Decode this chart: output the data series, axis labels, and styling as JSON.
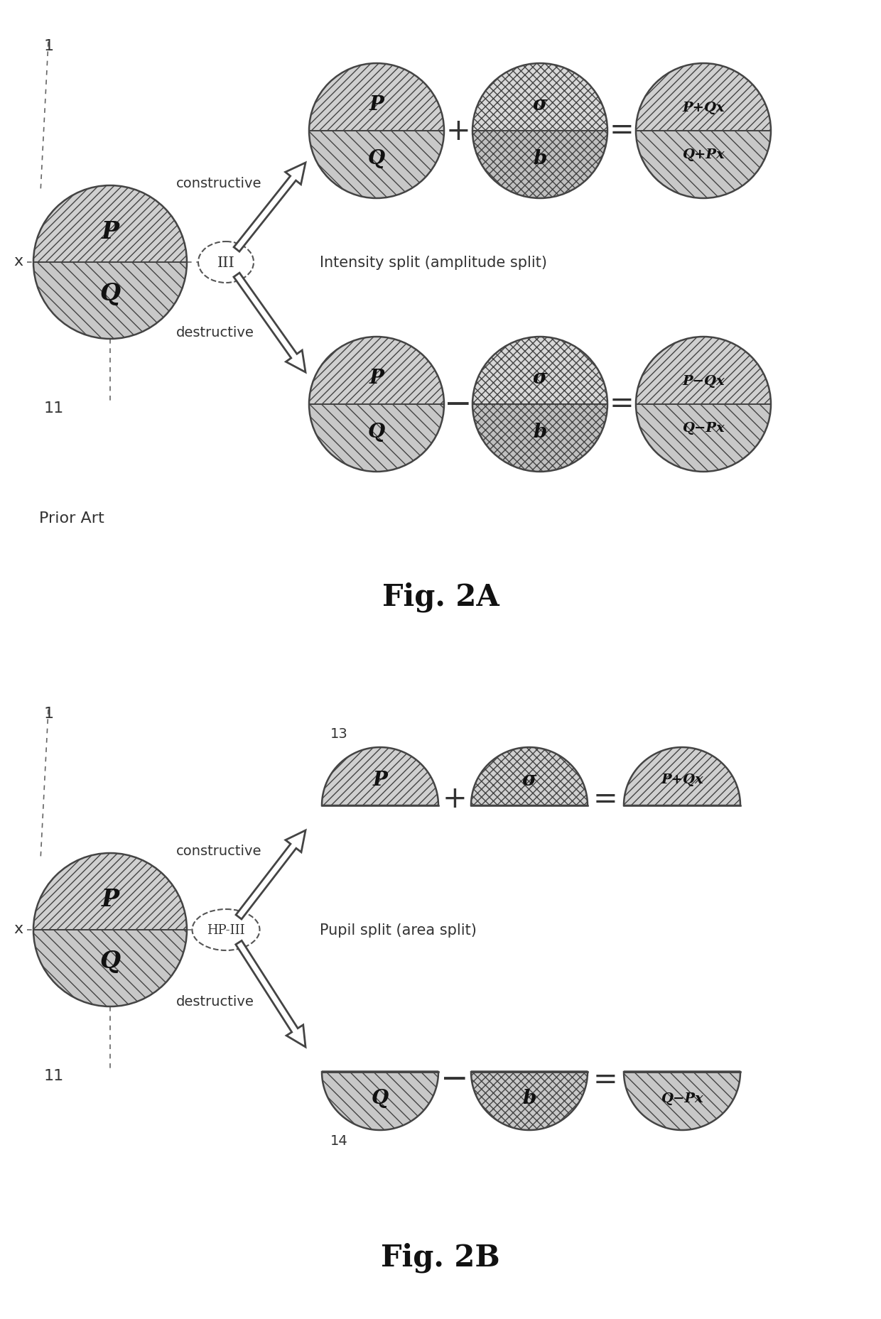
{
  "fig_background": "#ffffff",
  "fig2a_title": "Fig. 2A",
  "fig2b_title": "Fig. 2B",
  "prior_art_text": "Prior Art",
  "intensity_split_text": "Intensity split (amplitude split)",
  "pupil_split_text": "Pupil split (area split)",
  "constructive_text": "constructive",
  "destructive_text": "destructive",
  "label_III": "III",
  "label_HPIII": "HP-III",
  "ec": "#444444",
  "fc_top": "#cccccc",
  "fc_bot": "#dddddd",
  "text_color": "#111111",
  "arrow_color": "#777777",
  "label_color": "#333333"
}
